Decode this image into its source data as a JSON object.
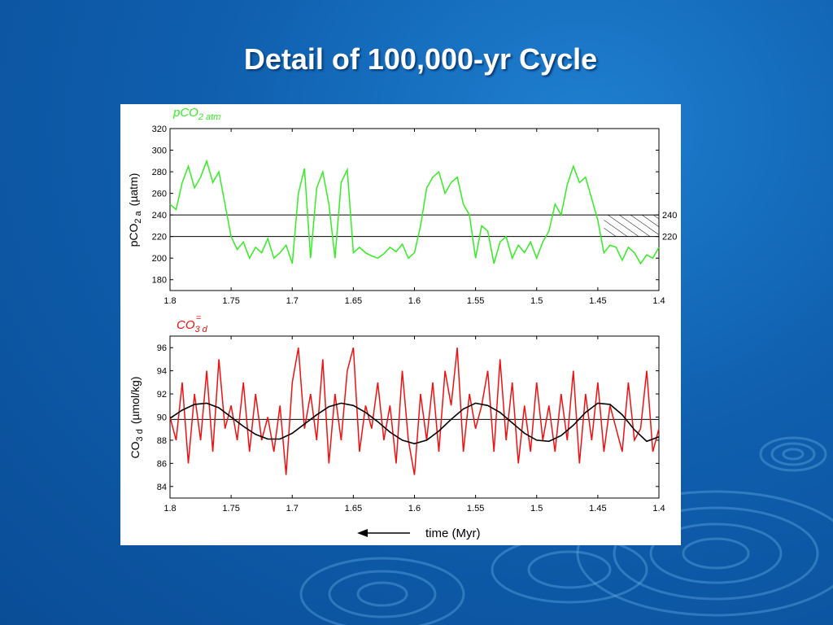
{
  "slide": {
    "title": "Detail of 100,000-yr Cycle"
  },
  "chart_data": [
    {
      "type": "line",
      "legend_label": "pCO",
      "legend_sub": "2 atm",
      "y_label_main": "pCO",
      "y_label_sub": "2 a",
      "y_label_unit": "(µatm)",
      "xlim": [
        1.8,
        1.4
      ],
      "ylim": [
        170,
        320
      ],
      "x_ticks": [
        "1.8",
        "1.75",
        "1.7",
        "1.65",
        "1.6",
        "1.55",
        "1.5",
        "1.45",
        "1.4"
      ],
      "y_ticks": [
        "320",
        "300",
        "280",
        "260",
        "240",
        "220",
        "200",
        "180"
      ],
      "reference_lines": [
        {
          "y": 240,
          "label": "240"
        },
        {
          "y": 220,
          "label": "220"
        }
      ],
      "hatched_region": {
        "x": [
          1.445,
          1.4
        ],
        "y": [
          220,
          240
        ]
      },
      "series": [
        {
          "color": "#33ee22",
          "x": [
            1.8,
            1.795,
            1.79,
            1.785,
            1.78,
            1.775,
            1.77,
            1.765,
            1.76,
            1.755,
            1.75,
            1.745,
            1.74,
            1.735,
            1.73,
            1.725,
            1.72,
            1.715,
            1.71,
            1.705,
            1.7,
            1.695,
            1.69,
            1.685,
            1.68,
            1.675,
            1.67,
            1.665,
            1.66,
            1.655,
            1.65,
            1.645,
            1.64,
            1.635,
            1.63,
            1.625,
            1.62,
            1.615,
            1.61,
            1.605,
            1.6,
            1.595,
            1.59,
            1.585,
            1.58,
            1.575,
            1.57,
            1.565,
            1.56,
            1.555,
            1.55,
            1.545,
            1.54,
            1.535,
            1.53,
            1.525,
            1.52,
            1.515,
            1.51,
            1.505,
            1.5,
            1.495,
            1.49,
            1.485,
            1.48,
            1.475,
            1.47,
            1.465,
            1.46,
            1.455,
            1.45,
            1.445,
            1.44,
            1.435,
            1.43,
            1.425,
            1.42,
            1.415,
            1.41,
            1.405,
            1.4
          ],
          "y": [
            250,
            245,
            270,
            285,
            265,
            275,
            290,
            270,
            280,
            250,
            220,
            208,
            215,
            200,
            210,
            205,
            218,
            200,
            205,
            212,
            195,
            260,
            283,
            200,
            265,
            280,
            250,
            200,
            270,
            282,
            205,
            210,
            205,
            202,
            200,
            204,
            210,
            206,
            213,
            200,
            205,
            230,
            265,
            275,
            280,
            260,
            270,
            275,
            250,
            240,
            200,
            230,
            225,
            195,
            215,
            220,
            200,
            212,
            205,
            215,
            200,
            215,
            225,
            250,
            240,
            268,
            285,
            270,
            275,
            255,
            235,
            205,
            212,
            210,
            198,
            210,
            205,
            195,
            203,
            200,
            210
          ]
        }
      ]
    },
    {
      "type": "line",
      "legend_label": "CO",
      "legend_sub": "3 d",
      "legend_sup": "=",
      "y_label_main": "CO",
      "y_label_sub": "3 d",
      "y_label_sup": "=",
      "y_label_unit": "(µmol/kg)",
      "x_label": "time (Myr)",
      "xlim": [
        1.8,
        1.4
      ],
      "ylim": [
        83,
        97
      ],
      "x_ticks": [
        "1.8",
        "1.75",
        "1.7",
        "1.65",
        "1.6",
        "1.55",
        "1.5",
        "1.45",
        "1.4"
      ],
      "y_ticks": [
        "96",
        "94",
        "92",
        "90",
        "88",
        "86",
        "84"
      ],
      "reference_lines": [
        {
          "y": 89.8
        }
      ],
      "series": [
        {
          "color": "#ee1111",
          "x": [
            1.8,
            1.795,
            1.79,
            1.785,
            1.78,
            1.775,
            1.77,
            1.765,
            1.76,
            1.755,
            1.75,
            1.745,
            1.74,
            1.735,
            1.73,
            1.725,
            1.72,
            1.715,
            1.71,
            1.705,
            1.7,
            1.695,
            1.69,
            1.685,
            1.68,
            1.675,
            1.67,
            1.665,
            1.66,
            1.655,
            1.65,
            1.645,
            1.64,
            1.635,
            1.63,
            1.625,
            1.62,
            1.615,
            1.61,
            1.605,
            1.6,
            1.595,
            1.59,
            1.585,
            1.58,
            1.575,
            1.57,
            1.565,
            1.56,
            1.555,
            1.55,
            1.545,
            1.54,
            1.535,
            1.53,
            1.525,
            1.52,
            1.515,
            1.51,
            1.505,
            1.5,
            1.495,
            1.49,
            1.485,
            1.48,
            1.475,
            1.47,
            1.465,
            1.46,
            1.455,
            1.45,
            1.445,
            1.44,
            1.435,
            1.43,
            1.425,
            1.42,
            1.415,
            1.41,
            1.405,
            1.4
          ],
          "y": [
            90,
            88,
            93,
            86,
            92,
            88,
            94,
            87,
            95,
            89,
            91,
            88,
            93,
            87,
            92,
            88,
            90,
            87,
            91,
            85,
            93,
            96,
            89,
            92,
            88,
            95,
            86,
            92,
            88,
            94,
            96,
            87,
            91,
            89,
            93,
            88,
            91,
            86,
            94,
            88,
            85,
            92,
            88,
            93,
            87,
            94,
            91,
            96,
            87,
            92,
            89,
            91,
            94,
            87,
            95,
            88,
            93,
            86,
            91,
            87,
            93,
            88,
            91,
            87,
            92,
            88,
            94,
            86,
            92,
            88,
            93,
            87,
            91,
            89,
            87,
            93,
            88,
            89,
            94,
            87,
            89
          ]
        },
        {
          "color": "#000000",
          "x": [
            1.8,
            1.79,
            1.78,
            1.77,
            1.76,
            1.75,
            1.74,
            1.73,
            1.72,
            1.71,
            1.7,
            1.69,
            1.68,
            1.67,
            1.66,
            1.65,
            1.64,
            1.63,
            1.62,
            1.61,
            1.6,
            1.59,
            1.58,
            1.57,
            1.56,
            1.55,
            1.54,
            1.53,
            1.52,
            1.51,
            1.5,
            1.49,
            1.48,
            1.47,
            1.46,
            1.45,
            1.44,
            1.43,
            1.42,
            1.41,
            1.4
          ],
          "y": [
            89.9,
            90.6,
            91.1,
            91.2,
            90.8,
            90.0,
            89.2,
            88.5,
            88.1,
            88.1,
            88.6,
            89.4,
            90.2,
            90.9,
            91.2,
            91.0,
            90.4,
            89.6,
            88.7,
            88.0,
            87.7,
            88.0,
            88.8,
            89.8,
            90.7,
            91.2,
            91.0,
            90.4,
            89.5,
            88.6,
            88.0,
            87.9,
            88.4,
            89.3,
            90.4,
            91.2,
            91.1,
            90.2,
            88.9,
            87.9,
            88.3
          ]
        }
      ]
    }
  ]
}
